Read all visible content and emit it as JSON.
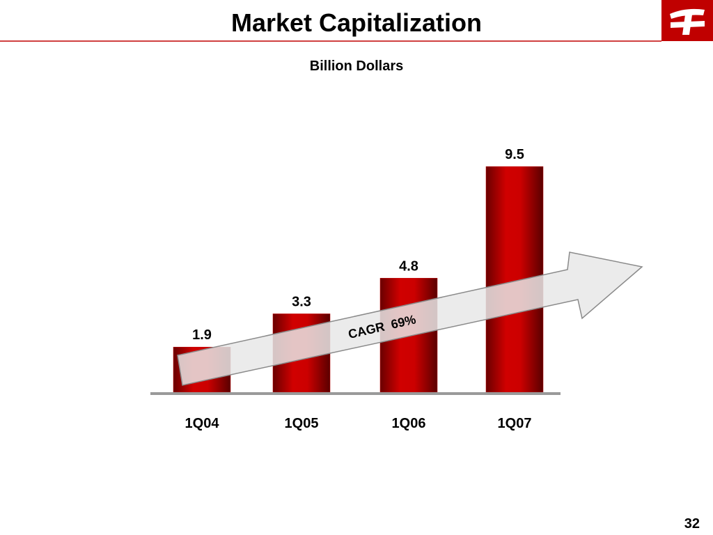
{
  "chart_data": {
    "type": "bar",
    "title": "Market Capitalization",
    "subtitle": "Billion Dollars",
    "categories": [
      "1Q04",
      "1Q05",
      "1Q06",
      "1Q07"
    ],
    "values": [
      1.9,
      3.3,
      4.8,
      9.5
    ],
    "color": "#c00000",
    "annotation": "CAGR  69%",
    "page_number": "32"
  }
}
